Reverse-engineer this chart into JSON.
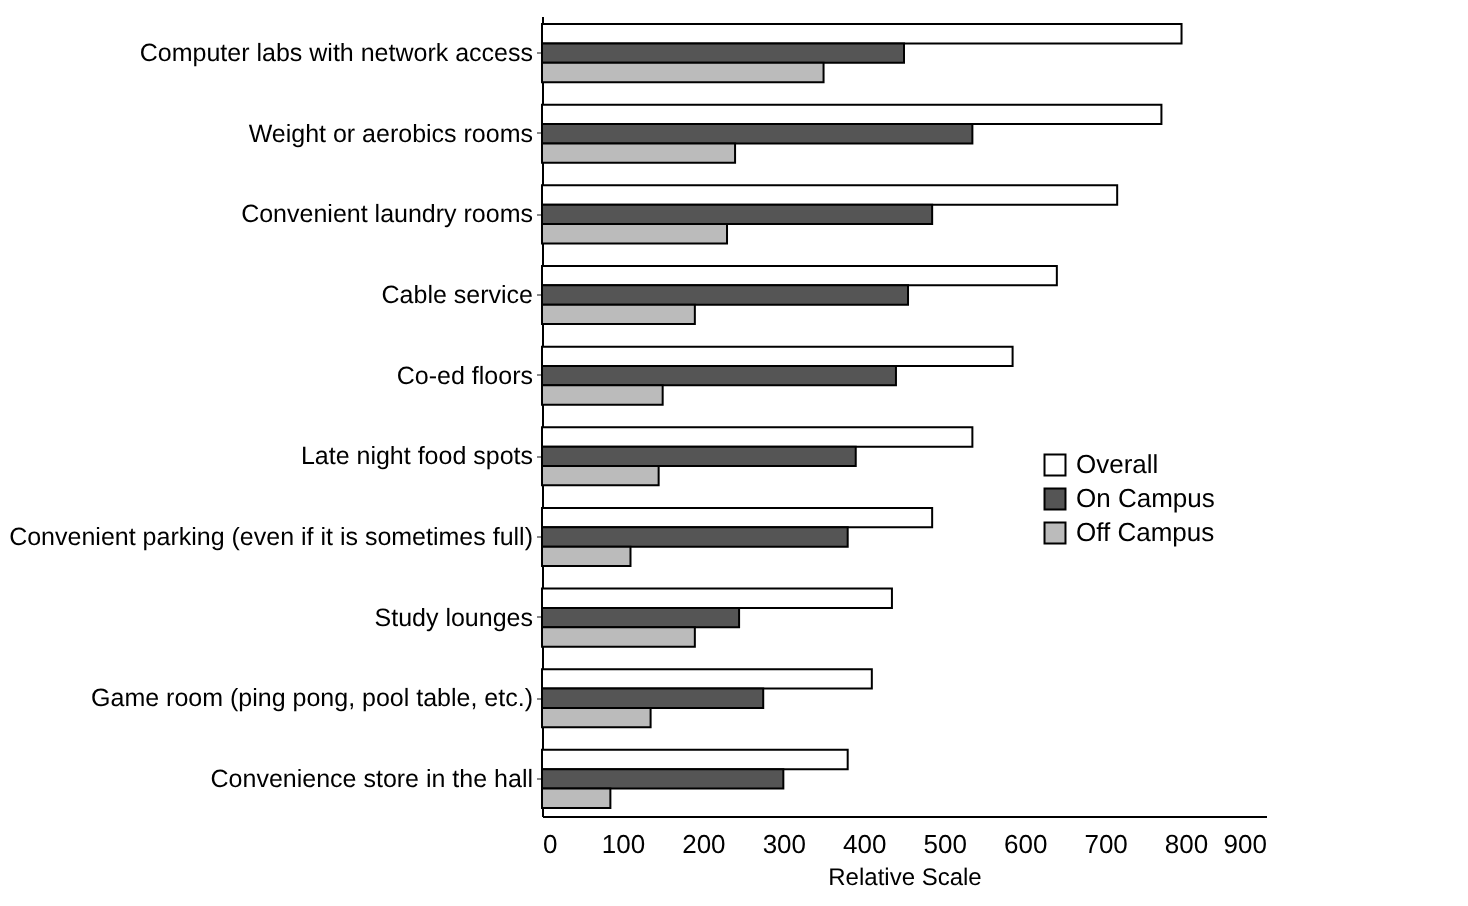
{
  "chart_data": {
    "type": "bar",
    "orientation": "horizontal",
    "xlabel": "Relative Scale",
    "categories": [
      "Computer labs with network access",
      "Weight or aerobics rooms",
      "Convenient laundry rooms",
      "Cable service",
      "Co-ed floors",
      "Late night food spots",
      "Convenient parking (even if it is sometimes full)",
      "Study lounges",
      "Game room (ping pong, pool table, etc.)",
      "Convenience store in the hall"
    ],
    "series": [
      {
        "name": "Overall",
        "color": "#ffffff",
        "values": [
          795,
          770,
          715,
          640,
          585,
          535,
          485,
          435,
          410,
          380
        ]
      },
      {
        "name": "On Campus",
        "color": "#555555",
        "values": [
          450,
          535,
          485,
          455,
          440,
          390,
          380,
          245,
          275,
          300
        ]
      },
      {
        "name": "Off Campus",
        "color": "#bbbbbb",
        "values": [
          350,
          240,
          230,
          190,
          150,
          145,
          110,
          190,
          135,
          85
        ]
      }
    ],
    "xlim": [
      0,
      900
    ],
    "xticks": [
      0,
      100,
      200,
      300,
      400,
      500,
      600,
      700,
      800,
      900
    ],
    "grid": false,
    "legend": "right"
  }
}
